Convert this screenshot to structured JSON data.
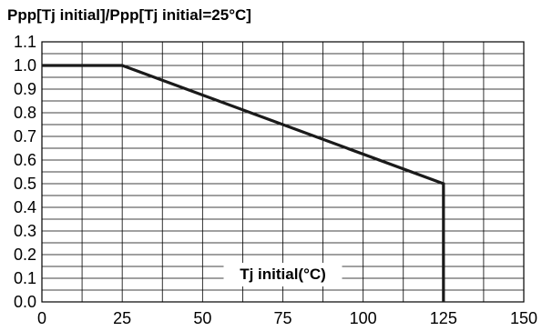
{
  "chart_data": {
    "type": "line",
    "title": "Ppp[Tj initial]/Ppp[Tj initial=25°C]",
    "xlabel": "Tj initial(°C)",
    "ylabel": "",
    "xlim": [
      0,
      150
    ],
    "ylim": [
      0,
      1.1
    ],
    "xticks": [
      0,
      25,
      50,
      75,
      100,
      125,
      150
    ],
    "xtick_labels": [
      "0",
      "25",
      "50",
      "75",
      "100",
      "125",
      "150"
    ],
    "yticks": [
      0,
      0.1,
      0.2,
      0.3,
      0.4,
      0.5,
      0.6,
      0.7,
      0.8,
      0.9,
      1.0,
      1.1
    ],
    "ytick_labels": [
      "0.0",
      "0.1",
      "0.2",
      "0.3",
      "0.4",
      "0.5",
      "0.6",
      "0.7",
      "0.8",
      "0.9",
      "1.0",
      "1.1"
    ],
    "x_minor_step": 12.5,
    "y_minor_step": 0.05,
    "grid": true,
    "series": [
      {
        "x": [
          0,
          25,
          125,
          125
        ],
        "y": [
          1.0,
          1.0,
          0.5,
          0.0
        ]
      }
    ],
    "colors": {
      "line": "#1a1a1a",
      "grid": "#000000",
      "background": "#ffffff"
    }
  }
}
